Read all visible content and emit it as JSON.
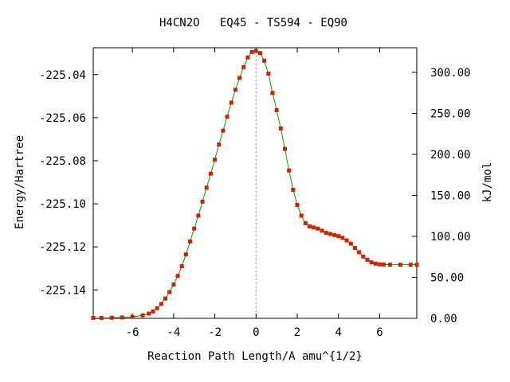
{
  "chart_data": {
    "type": "line",
    "title": "H4CN2O   EQ45 - TS594 - EQ90",
    "xlabel": "Reaction Path Length/A amu^{1/2}",
    "ylabel": "Energy/Hartree",
    "y2label": "kJ/mol",
    "xlim": [
      -7.9,
      7.8
    ],
    "ylim": [
      -225.1532,
      -225.0275
    ],
    "y2lim": [
      0,
      330.0
    ],
    "xticks": [
      -6,
      -4,
      -2,
      0,
      2,
      4,
      6
    ],
    "xtick_labels": [
      "-6",
      "-4",
      "-2",
      "0",
      "2",
      "4",
      "6"
    ],
    "yticks": [
      -225.14,
      -225.12,
      -225.1,
      -225.08,
      -225.06,
      -225.04
    ],
    "ytick_labels": [
      "-225.14",
      "-225.12",
      "-225.10",
      "-225.08",
      "-225.06",
      "-225.04"
    ],
    "y2ticks": [
      0,
      50,
      100,
      150,
      200,
      250,
      300
    ],
    "y2tick_labels": [
      "0.00",
      "50.00",
      "100.00",
      "150.00",
      "200.00",
      "250.00",
      "300.00"
    ],
    "ts_marker_x": 0,
    "colors": {
      "line": "#00a000",
      "marker": "#cc2200",
      "ts_line": "#909090"
    },
    "series": [
      {
        "x": [
          -7.9,
          -7.5,
          -7.0,
          -6.5,
          -6.0,
          -5.5,
          -5.2,
          -5.0,
          -4.8,
          -4.6,
          -4.4,
          -4.2,
          -4.0,
          -3.8,
          -3.6,
          -3.4,
          -3.2,
          -3.0,
          -2.8,
          -2.6,
          -2.4,
          -2.2,
          -2.0,
          -1.8,
          -1.6,
          -1.4,
          -1.2,
          -1.0,
          -0.8,
          -0.6,
          -0.4,
          -0.2,
          0.0,
          0.2,
          0.4,
          0.6,
          0.8,
          1.0,
          1.2,
          1.4,
          1.6,
          1.8,
          2.0,
          2.2,
          2.4,
          2.6,
          2.8,
          3.0,
          3.2,
          3.4,
          3.6,
          3.8,
          4.0,
          4.2,
          4.4,
          4.6,
          4.8,
          5.0,
          5.2,
          5.4,
          5.6,
          5.8,
          6.0,
          6.2,
          6.5,
          7.0,
          7.5,
          7.8
        ],
        "y": [
          -225.153,
          -225.153,
          -225.1529,
          -225.1528,
          -225.1525,
          -225.1518,
          -225.151,
          -225.15,
          -225.1485,
          -225.1465,
          -225.144,
          -225.141,
          -225.1375,
          -225.1335,
          -225.129,
          -225.1235,
          -225.1175,
          -225.1115,
          -225.1055,
          -225.099,
          -225.0925,
          -225.086,
          -225.0795,
          -225.0725,
          -225.066,
          -225.0595,
          -225.053,
          -225.047,
          -225.0415,
          -225.0365,
          -225.032,
          -225.0295,
          -225.029,
          -225.03,
          -225.0335,
          -225.0395,
          -225.0485,
          -225.0565,
          -225.065,
          -225.0745,
          -225.0845,
          -225.0935,
          -225.1005,
          -225.1055,
          -225.109,
          -225.1105,
          -225.111,
          -225.1115,
          -225.1125,
          -225.1135,
          -225.114,
          -225.1145,
          -225.115,
          -225.1158,
          -225.117,
          -225.1185,
          -225.1205,
          -225.1225,
          -225.1245,
          -225.126,
          -225.1272,
          -225.1278,
          -225.1281,
          -225.1282,
          -225.1283,
          -225.1283,
          -225.1283,
          -225.1283
        ]
      }
    ]
  }
}
